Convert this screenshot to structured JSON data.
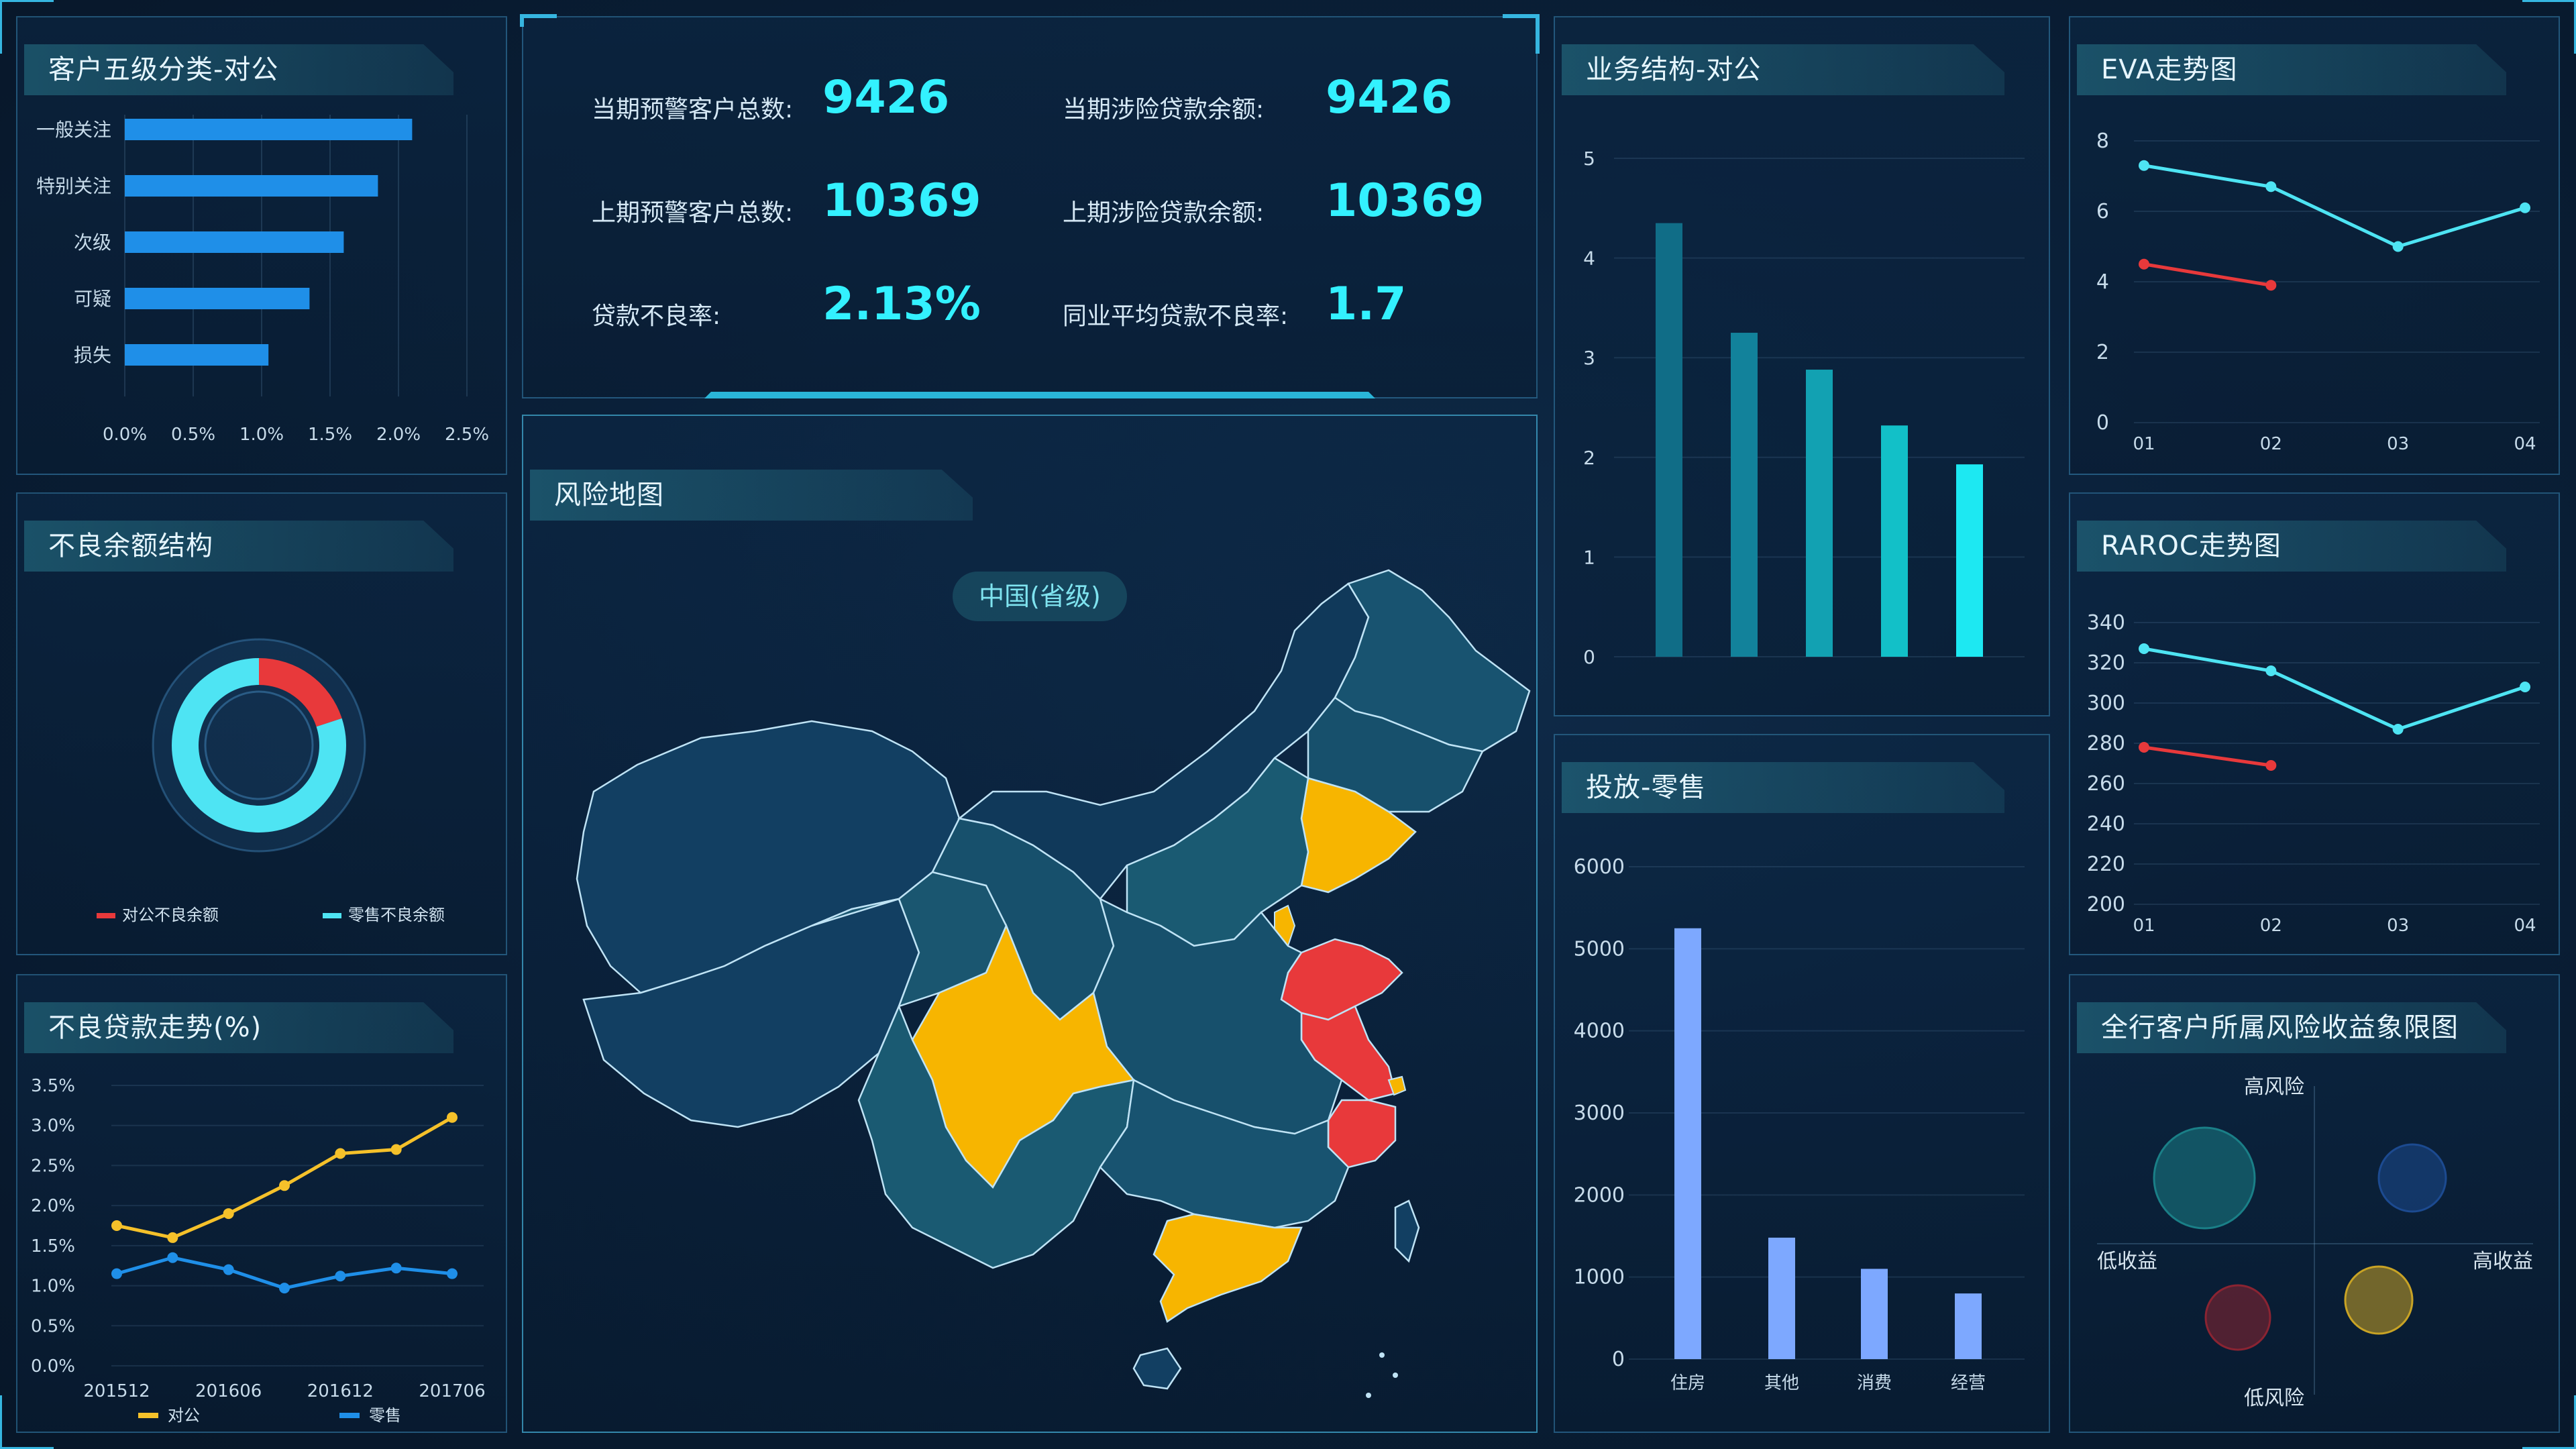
{
  "colors": {
    "accent": "#33f1ff",
    "bar_blue": "#1f8fe8",
    "red": "#e8393b",
    "yellow": "#f5c12a",
    "cyan": "#4ee4f3",
    "retail_bar": "#7da8ff",
    "map_base": "#123f62",
    "map_mid": "#1a5a72",
    "map_orange": "#f7b500"
  },
  "panels": {
    "customer_class": {
      "title": "客户五级分类-对公"
    },
    "bad_balance": {
      "title": "不良余额结构"
    },
    "bad_loan_trend": {
      "title": "不良贷款走势(%)"
    },
    "risk_map": {
      "title": "风险地图",
      "subtitle": "中国(省级)"
    },
    "biz_structure": {
      "title": "业务结构-对公"
    },
    "retail": {
      "title": "投放-零售"
    },
    "eva": {
      "title": "EVA走势图"
    },
    "raroc": {
      "title": "RAROC走势图"
    },
    "quadrant": {
      "title": "全行客户所属风险收益象限图"
    }
  },
  "stats": {
    "cur_warn_label": "当期预警客户总数:",
    "cur_warn_value": "9426",
    "cur_loan_label": "当期涉险贷款余额:",
    "cur_loan_value": "9426",
    "prev_warn_label": "上期预警客户总数:",
    "prev_warn_value": "10369",
    "prev_loan_label": "上期涉险贷款余额:",
    "prev_loan_value": "10369",
    "npl_label": "贷款不良率:",
    "npl_value": "2.13%",
    "peer_label": "同业平均贷款不良率:",
    "peer_value": "1.7"
  },
  "chart_data": [
    {
      "id": "customer_class",
      "type": "bar",
      "orientation": "horizontal",
      "categories": [
        "一般关注",
        "特别关注",
        "次级",
        "可疑",
        "损失"
      ],
      "values": [
        2.1,
        1.85,
        1.6,
        1.35,
        1.05
      ],
      "xlim": [
        0,
        2.5
      ],
      "xticks": [
        "0.0%",
        "0.5%",
        "1.0%",
        "1.5%",
        "2.0%",
        "2.5%"
      ]
    },
    {
      "id": "bad_balance",
      "type": "pie",
      "slices": [
        {
          "name": "对公不良余额",
          "value": 20,
          "color": "#e8393b"
        },
        {
          "name": "零售不良余额",
          "value": 80,
          "color": "#4ee4f3"
        }
      ]
    },
    {
      "id": "bad_loan_trend",
      "type": "line",
      "categories": [
        "201512",
        "",
        "201606",
        "",
        "201612",
        "",
        "201706"
      ],
      "xtick_labels": [
        "201512",
        "201606",
        "201612",
        "201706"
      ],
      "yticks": [
        "0.0%",
        "0.5%",
        "1.0%",
        "1.5%",
        "2.0%",
        "2.5%",
        "3.0%",
        "3.5%"
      ],
      "ylim": [
        0,
        3.5
      ],
      "series": [
        {
          "name": "对公",
          "color": "#f5c12a",
          "values": [
            1.75,
            1.6,
            1.9,
            2.25,
            2.65,
            2.7,
            3.1
          ]
        },
        {
          "name": "零售",
          "color": "#1f8fe8",
          "values": [
            1.15,
            1.35,
            1.2,
            0.97,
            1.12,
            1.22,
            1.15
          ]
        }
      ]
    },
    {
      "id": "biz_structure",
      "type": "bar",
      "yticks": [
        "0",
        "1",
        "2",
        "3",
        "4",
        "5"
      ],
      "ylim": [
        0,
        5
      ],
      "values": [
        4.35,
        3.25,
        2.88,
        2.32,
        1.93
      ],
      "colors": [
        "#106d87",
        "#12829b",
        "#12a1b2",
        "#12c0c8",
        "#1de8f2"
      ]
    },
    {
      "id": "retail",
      "type": "bar",
      "categories": [
        "住房",
        "其他",
        "消费",
        "经营"
      ],
      "values": [
        5250,
        1480,
        1100,
        800
      ],
      "ylim": [
        0,
        6000
      ],
      "yticks": [
        "0",
        "1000",
        "2000",
        "3000",
        "4000",
        "5000",
        "6000"
      ]
    },
    {
      "id": "eva",
      "type": "line",
      "categories": [
        "01",
        "02",
        "03",
        "04"
      ],
      "ylim": [
        0,
        8
      ],
      "yticks": [
        "0",
        "2",
        "4",
        "6",
        "8"
      ],
      "series": [
        {
          "color": "#4ee4f3",
          "values": [
            7.3,
            6.7,
            5.0,
            6.1
          ]
        },
        {
          "color": "#e8393b",
          "values": [
            4.5,
            3.9,
            null,
            null
          ]
        }
      ]
    },
    {
      "id": "raroc",
      "type": "line",
      "categories": [
        "01",
        "02",
        "03",
        "04"
      ],
      "ylim": [
        200,
        340
      ],
      "yticks": [
        "200",
        "220",
        "240",
        "260",
        "280",
        "300",
        "320",
        "340"
      ],
      "series": [
        {
          "color": "#4ee4f3",
          "values": [
            327,
            316,
            287,
            308
          ]
        },
        {
          "color": "#e8393b",
          "values": [
            278,
            269,
            null,
            null
          ]
        }
      ]
    },
    {
      "id": "quadrant",
      "type": "scatter",
      "labels": {
        "top": "高风险",
        "bottom": "低风险",
        "left": "低收益",
        "right": "高收益"
      },
      "points": [
        {
          "quadrant": "top-left",
          "color": "#1a7f87"
        },
        {
          "quadrant": "top-right",
          "color": "#1c4a90"
        },
        {
          "quadrant": "bottom-left",
          "color": "#8a2432"
        },
        {
          "quadrant": "bottom-right",
          "color": "#c8a325"
        }
      ]
    }
  ]
}
